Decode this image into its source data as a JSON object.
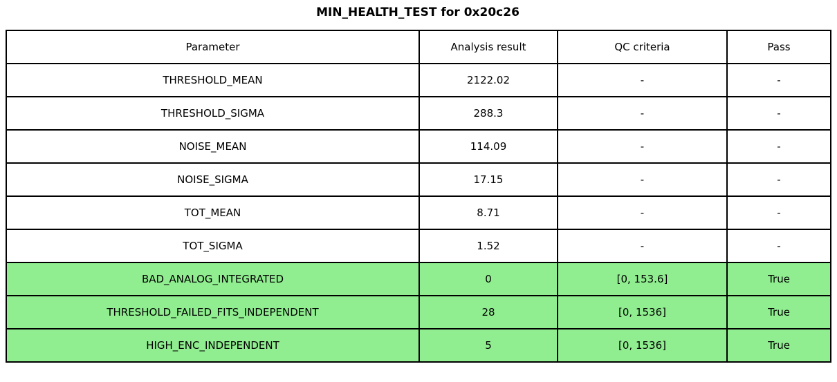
{
  "title": "MIN_HEALTH_TEST for 0x20c26",
  "colors": {
    "pass_green": "#90EE90",
    "border": "#000000",
    "background": "#FFFFFF",
    "text": "#000000"
  },
  "chart_data": {
    "type": "table",
    "title": "MIN_HEALTH_TEST for 0x20c26",
    "columns": [
      "Parameter",
      "Analysis result",
      "QC criteria",
      "Pass"
    ],
    "rows": [
      [
        "THRESHOLD_MEAN",
        "2122.02",
        "-",
        "-"
      ],
      [
        "THRESHOLD_SIGMA",
        "288.3",
        "-",
        "-"
      ],
      [
        "NOISE_MEAN",
        "114.09",
        "-",
        "-"
      ],
      [
        "NOISE_SIGMA",
        "17.15",
        "-",
        "-"
      ],
      [
        "TOT_MEAN",
        "8.71",
        "-",
        "-"
      ],
      [
        "TOT_SIGMA",
        "1.52",
        "-",
        "-"
      ],
      [
        "BAD_ANALOG_INTEGRATED",
        "0",
        "[0, 153.6]",
        "True"
      ],
      [
        "THRESHOLD_FAILED_FITS_INDEPENDENT",
        "28",
        "[0, 1536]",
        "True"
      ],
      [
        "HIGH_ENC_INDEPENDENT",
        "5",
        "[0, 1536]",
        "True"
      ]
    ],
    "highlighted_row_indices": [
      6,
      7,
      8
    ],
    "highlight_color": "#90EE90",
    "layout": {
      "grid": "full-borders",
      "header_row": true,
      "title_position": "top-center"
    }
  }
}
